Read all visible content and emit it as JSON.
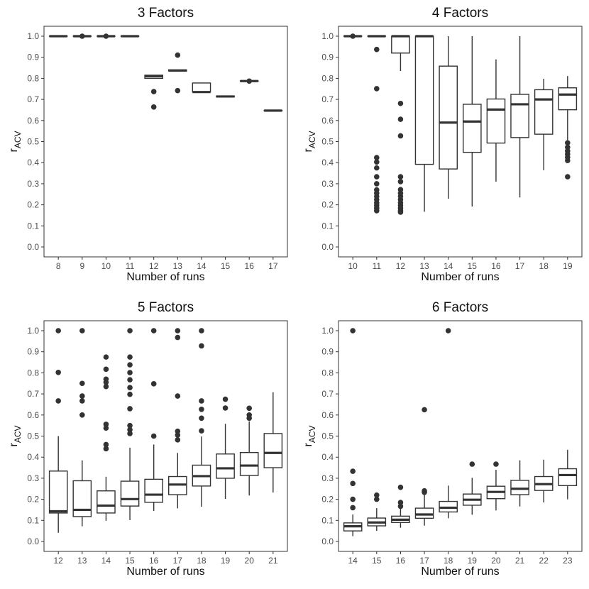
{
  "chart_data": [
    {
      "type": "boxplot",
      "title": "3 Factors",
      "xlabel": "Number of runs",
      "ylabel": {
        "main": "r",
        "sub": "ACV"
      },
      "ylim": [
        0,
        1
      ],
      "yticks": [
        "0.0",
        "0.1",
        "0.2",
        "0.3",
        "0.4",
        "0.5",
        "0.6",
        "0.7",
        "0.8",
        "0.9",
        "1.0"
      ],
      "categories": [
        "8",
        "9",
        "10",
        "11",
        "12",
        "13",
        "14",
        "15",
        "16",
        "17"
      ],
      "boxes": [
        {
          "q1": 1.0,
          "median": 1.0,
          "q3": 1.0,
          "lo": 1.0,
          "hi": 1.0,
          "outliers": []
        },
        {
          "q1": 1.0,
          "median": 1.0,
          "q3": 1.0,
          "lo": 1.0,
          "hi": 1.0,
          "outliers": [
            1.0
          ]
        },
        {
          "q1": 1.0,
          "median": 1.0,
          "q3": 1.0,
          "lo": 1.0,
          "hi": 1.0,
          "outliers": [
            1.0
          ]
        },
        {
          "q1": 1.0,
          "median": 1.0,
          "q3": 1.0,
          "lo": 1.0,
          "hi": 1.0,
          "outliers": []
        },
        {
          "q1": 0.8,
          "median": 0.81,
          "q3": 0.815,
          "lo": 0.8,
          "hi": 0.815,
          "outliers": [
            0.737,
            0.664
          ]
        },
        {
          "q1": 0.835,
          "median": 0.837,
          "q3": 0.84,
          "lo": 0.835,
          "hi": 0.84,
          "outliers": [
            0.91,
            0.742
          ]
        },
        {
          "q1": 0.735,
          "median": 0.735,
          "q3": 0.778,
          "lo": 0.735,
          "hi": 0.778,
          "outliers": []
        },
        {
          "q1": 0.712,
          "median": 0.714,
          "q3": 0.716,
          "lo": 0.712,
          "hi": 0.716,
          "outliers": []
        },
        {
          "q1": 0.786,
          "median": 0.787,
          "q3": 0.788,
          "lo": 0.786,
          "hi": 0.788,
          "outliers": [
            0.787
          ]
        },
        {
          "q1": 0.646,
          "median": 0.647,
          "q3": 0.648,
          "lo": 0.646,
          "hi": 0.648,
          "outliers": []
        }
      ]
    },
    {
      "type": "boxplot",
      "title": "4 Factors",
      "xlabel": "Number of runs",
      "ylabel": {
        "main": "r",
        "sub": "ACV"
      },
      "ylim": [
        0,
        1
      ],
      "yticks": [
        "0.0",
        "0.1",
        "0.2",
        "0.3",
        "0.4",
        "0.5",
        "0.6",
        "0.7",
        "0.8",
        "0.9",
        "1.0"
      ],
      "categories": [
        "10",
        "11",
        "12",
        "13",
        "14",
        "15",
        "16",
        "17",
        "18",
        "19"
      ],
      "boxes": [
        {
          "q1": 1.0,
          "median": 1.0,
          "q3": 1.0,
          "lo": 1.0,
          "hi": 1.0,
          "outliers": [
            1.0
          ]
        },
        {
          "q1": 1.0,
          "median": 1.0,
          "q3": 1.0,
          "lo": 1.0,
          "hi": 1.0,
          "outliers": [
            0.937,
            0.751,
            0.424,
            0.403,
            0.375,
            0.333,
            0.3,
            0.271,
            0.255,
            0.24,
            0.225,
            0.21,
            0.197,
            0.184,
            0.172
          ]
        },
        {
          "q1": 0.92,
          "median": 1.0,
          "q3": 1.0,
          "lo": 0.835,
          "hi": 1.0,
          "outliers": [
            0.681,
            0.606,
            0.527,
            0.333,
            0.31,
            0.272,
            0.255,
            0.24,
            0.225,
            0.21,
            0.197,
            0.184,
            0.172,
            0.165
          ]
        },
        {
          "q1": 0.392,
          "median": 1.0,
          "q3": 1.0,
          "lo": 0.167,
          "hi": 1.0,
          "outliers": []
        },
        {
          "q1": 0.37,
          "median": 0.59,
          "q3": 0.858,
          "lo": 0.229,
          "hi": 1.0,
          "outliers": []
        },
        {
          "q1": 0.449,
          "median": 0.595,
          "q3": 0.677,
          "lo": 0.192,
          "hi": 1.0,
          "outliers": []
        },
        {
          "q1": 0.493,
          "median": 0.652,
          "q3": 0.702,
          "lo": 0.31,
          "hi": 0.89,
          "outliers": []
        },
        {
          "q1": 0.519,
          "median": 0.677,
          "q3": 0.724,
          "lo": 0.235,
          "hi": 1.0,
          "outliers": []
        },
        {
          "q1": 0.535,
          "median": 0.7,
          "q3": 0.746,
          "lo": 0.364,
          "hi": 0.798,
          "outliers": []
        },
        {
          "q1": 0.651,
          "median": 0.723,
          "q3": 0.755,
          "lo": 0.507,
          "hi": 0.811,
          "outliers": [
            0.494,
            0.473,
            0.455,
            0.44,
            0.425,
            0.41,
            0.333
          ]
        }
      ]
    },
    {
      "type": "boxplot",
      "title": "5 Factors",
      "xlabel": "Number of runs",
      "ylabel": {
        "main": "r",
        "sub": "ACV"
      },
      "ylim": [
        0,
        1
      ],
      "yticks": [
        "0.0",
        "0.1",
        "0.2",
        "0.3",
        "0.4",
        "0.5",
        "0.6",
        "0.7",
        "0.8",
        "0.9",
        "1.0"
      ],
      "categories": [
        "12",
        "13",
        "14",
        "15",
        "16",
        "17",
        "18",
        "19",
        "20",
        "21"
      ],
      "boxes": [
        {
          "q1": 0.135,
          "median": 0.143,
          "q3": 0.334,
          "lo": 0.041,
          "hi": 0.5,
          "outliers": [
            1.0,
            0.802,
            0.667
          ]
        },
        {
          "q1": 0.118,
          "median": 0.15,
          "q3": 0.288,
          "lo": 0.072,
          "hi": 0.385,
          "outliers": [
            1.0,
            0.75,
            0.69,
            0.667,
            0.6
          ]
        },
        {
          "q1": 0.135,
          "median": 0.17,
          "q3": 0.24,
          "lo": 0.098,
          "hi": 0.307,
          "outliers": [
            0.875,
            0.817,
            0.77,
            0.755,
            0.735,
            0.556,
            0.538,
            0.46,
            0.44
          ]
        },
        {
          "q1": 0.168,
          "median": 0.201,
          "q3": 0.286,
          "lo": 0.101,
          "hi": 0.445,
          "outliers": [
            1.0,
            0.875,
            0.838,
            0.801,
            0.767,
            0.73,
            0.698,
            0.63,
            0.55,
            0.53,
            0.512
          ]
        },
        {
          "q1": 0.186,
          "median": 0.222,
          "q3": 0.295,
          "lo": 0.145,
          "hi": 0.46,
          "outliers": [
            1.0,
            0.748,
            0.5
          ]
        },
        {
          "q1": 0.222,
          "median": 0.27,
          "q3": 0.308,
          "lo": 0.157,
          "hi": 0.42,
          "outliers": [
            1.0,
            0.968,
            0.69,
            0.523,
            0.505,
            0.482
          ]
        },
        {
          "q1": 0.263,
          "median": 0.31,
          "q3": 0.362,
          "lo": 0.165,
          "hi": 0.498,
          "outliers": [
            1.0,
            0.928,
            0.667,
            0.627,
            0.585,
            0.525
          ]
        },
        {
          "q1": 0.3,
          "median": 0.347,
          "q3": 0.415,
          "lo": 0.202,
          "hi": 0.558,
          "outliers": [
            0.675,
            0.633
          ]
        },
        {
          "q1": 0.313,
          "median": 0.36,
          "q3": 0.422,
          "lo": 0.218,
          "hi": 0.57,
          "outliers": [
            0.632,
            0.6,
            0.585
          ]
        },
        {
          "q1": 0.35,
          "median": 0.42,
          "q3": 0.512,
          "lo": 0.232,
          "hi": 0.708,
          "outliers": []
        }
      ]
    },
    {
      "type": "boxplot",
      "title": "6 Factors",
      "xlabel": "Number of runs",
      "ylabel": {
        "main": "r",
        "sub": "ACV"
      },
      "ylim": [
        0,
        1
      ],
      "yticks": [
        "0.0",
        "0.1",
        "0.2",
        "0.3",
        "0.4",
        "0.5",
        "0.6",
        "0.7",
        "0.8",
        "0.9",
        "1.0"
      ],
      "categories": [
        "14",
        "15",
        "16",
        "17",
        "18",
        "19",
        "20",
        "21",
        "22",
        "23"
      ],
      "boxes": [
        {
          "q1": 0.05,
          "median": 0.072,
          "q3": 0.088,
          "lo": 0.025,
          "hi": 0.128,
          "outliers": [
            1.0,
            0.333,
            0.275,
            0.2,
            0.16
          ]
        },
        {
          "q1": 0.074,
          "median": 0.09,
          "q3": 0.111,
          "lo": 0.05,
          "hi": 0.158,
          "outliers": [
            0.22,
            0.2
          ]
        },
        {
          "q1": 0.09,
          "median": 0.103,
          "q3": 0.12,
          "lo": 0.065,
          "hi": 0.158,
          "outliers": [
            0.257,
            0.185,
            0.167
          ]
        },
        {
          "q1": 0.11,
          "median": 0.128,
          "q3": 0.158,
          "lo": 0.075,
          "hi": 0.222,
          "outliers": [
            0.625,
            0.24,
            0.233
          ]
        },
        {
          "q1": 0.14,
          "median": 0.16,
          "q3": 0.19,
          "lo": 0.11,
          "hi": 0.265,
          "outliers": [
            1.0
          ]
        },
        {
          "q1": 0.172,
          "median": 0.198,
          "q3": 0.225,
          "lo": 0.127,
          "hi": 0.302,
          "outliers": [
            0.367
          ]
        },
        {
          "q1": 0.203,
          "median": 0.235,
          "q3": 0.262,
          "lo": 0.147,
          "hi": 0.34,
          "outliers": [
            0.367
          ]
        },
        {
          "q1": 0.222,
          "median": 0.25,
          "q3": 0.29,
          "lo": 0.166,
          "hi": 0.385,
          "outliers": []
        },
        {
          "q1": 0.242,
          "median": 0.272,
          "q3": 0.308,
          "lo": 0.185,
          "hi": 0.388,
          "outliers": []
        },
        {
          "q1": 0.265,
          "median": 0.315,
          "q3": 0.345,
          "lo": 0.2,
          "hi": 0.435,
          "outliers": []
        }
      ]
    }
  ]
}
